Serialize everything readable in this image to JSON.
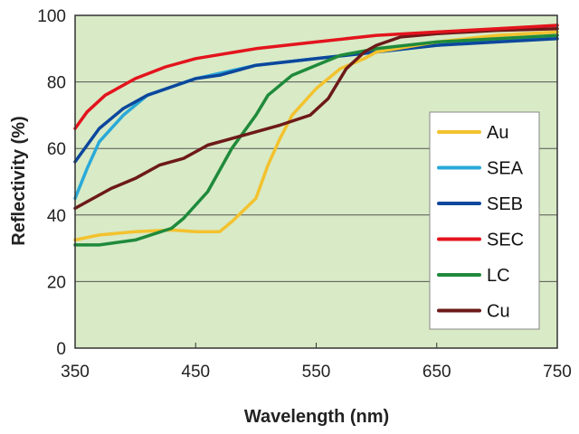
{
  "chart_data": {
    "type": "line",
    "title": "",
    "xlabel": "Wavelength (nm)",
    "ylabel": "Reflectivity (%)",
    "xlim": [
      350,
      750
    ],
    "ylim": [
      0,
      100
    ],
    "xticks": [
      350,
      450,
      550,
      650,
      750
    ],
    "yticks": [
      0,
      20,
      40,
      60,
      80,
      100
    ],
    "grid": "horizontal",
    "legend_position": "right",
    "plot_background": "#d8eac6",
    "series": [
      {
        "name": "Au",
        "color": "#f3c22e",
        "x": [
          350,
          370,
          400,
          430,
          450,
          470,
          480,
          500,
          510,
          520,
          530,
          550,
          570,
          590,
          600,
          650,
          700,
          750
        ],
        "y": [
          32.5,
          34,
          35,
          35.5,
          35,
          35,
          38,
          45,
          55,
          63,
          70,
          78,
          84,
          87,
          89,
          92,
          94,
          95
        ]
      },
      {
        "name": "SEA",
        "color": "#2aa9d8",
        "x": [
          350,
          360,
          370,
          390,
          410,
          450,
          500,
          550,
          600,
          650,
          700,
          750
        ],
        "y": [
          45,
          54,
          62,
          70,
          76,
          81,
          85,
          87,
          89,
          91,
          92.5,
          94
        ]
      },
      {
        "name": "SEB",
        "color": "#0c479c",
        "x": [
          350,
          370,
          390,
          410,
          450,
          470,
          500,
          550,
          600,
          650,
          700,
          750
        ],
        "y": [
          56,
          66,
          72,
          76,
          81,
          82,
          85,
          87,
          89,
          91,
          92,
          93
        ]
      },
      {
        "name": "SEC",
        "color": "#e3141d",
        "x": [
          350,
          360,
          375,
          400,
          425,
          450,
          500,
          550,
          600,
          650,
          700,
          750
        ],
        "y": [
          66,
          71,
          76,
          81,
          84.5,
          87,
          90,
          92,
          94,
          95,
          96,
          97
        ]
      },
      {
        "name": "LC",
        "color": "#1f8a3b",
        "x": [
          350,
          370,
          400,
          430,
          440,
          460,
          480,
          500,
          510,
          530,
          550,
          570,
          600,
          650,
          700,
          750
        ],
        "y": [
          31,
          31,
          32.5,
          36,
          39,
          47,
          60,
          70,
          76,
          82,
          85,
          88,
          90,
          92,
          93,
          94
        ]
      },
      {
        "name": "Cu",
        "color": "#6d1919",
        "x": [
          350,
          380,
          400,
          420,
          440,
          450,
          460,
          480,
          500,
          520,
          545,
          560,
          575,
          590,
          600,
          620,
          650,
          700,
          750
        ],
        "y": [
          42,
          48,
          51,
          55,
          57,
          59,
          61,
          63,
          65,
          67,
          70,
          75,
          84,
          89,
          91,
          93.5,
          94.5,
          95.5,
          96
        ]
      }
    ]
  }
}
